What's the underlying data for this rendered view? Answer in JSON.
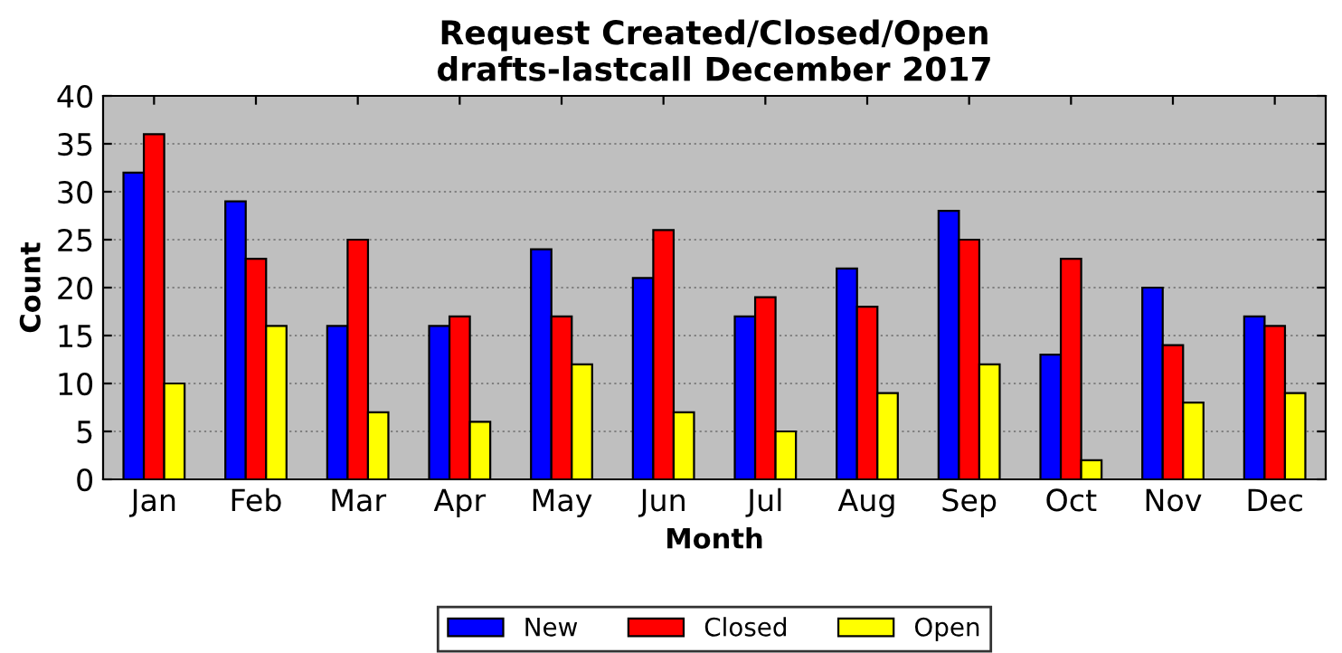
{
  "chart_data": {
    "type": "bar",
    "title": "Request Created/Closed/Open\ndrafts-lastcall December 2017",
    "xlabel": "Month",
    "ylabel": "Count",
    "categories": [
      "Jan",
      "Feb",
      "Mar",
      "Apr",
      "May",
      "Jun",
      "Jul",
      "Aug",
      "Sep",
      "Oct",
      "Nov",
      "Dec"
    ],
    "series": [
      {
        "name": "New",
        "color": "#0000ff",
        "values": [
          32,
          29,
          16,
          16,
          24,
          21,
          17,
          22,
          28,
          13,
          20,
          17
        ]
      },
      {
        "name": "Closed",
        "color": "#ff0000",
        "values": [
          36,
          23,
          25,
          17,
          17,
          26,
          19,
          18,
          25,
          23,
          14,
          16
        ]
      },
      {
        "name": "Open",
        "color": "#ffff00",
        "values": [
          10,
          16,
          7,
          6,
          12,
          7,
          5,
          9,
          12,
          2,
          8,
          9
        ]
      }
    ],
    "ylim": [
      0,
      40
    ],
    "yticks": [
      0,
      5,
      10,
      15,
      20,
      25,
      30,
      35,
      40
    ],
    "grid": "y",
    "legend": "bottom"
  }
}
